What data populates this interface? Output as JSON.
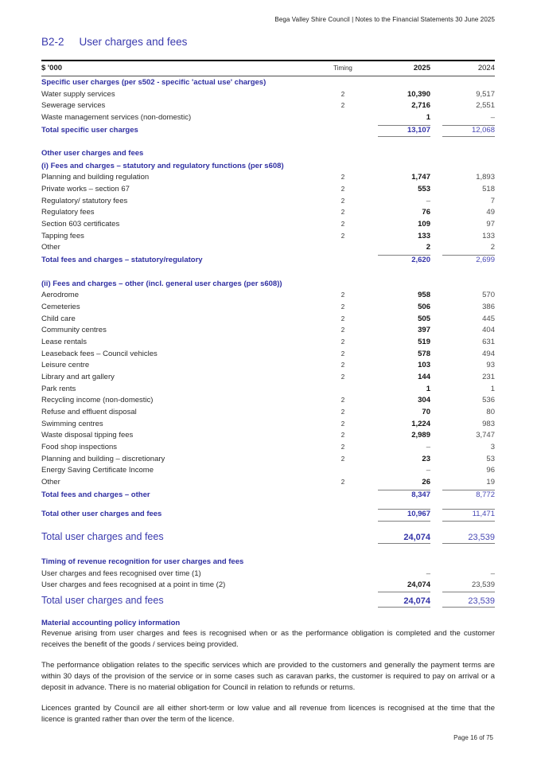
{
  "header": {
    "text": "Bega Valley Shire Council | Notes to the Financial Statements 30 June 2025"
  },
  "title": {
    "code": "B2-2",
    "text": "User charges and fees"
  },
  "table": {
    "headers": {
      "unit": "$ '000",
      "timing": "Timing",
      "y2025": "2025",
      "y2024": "2024"
    },
    "rows": [
      {
        "t": "section",
        "l": "Specific user charges (per s502 - specific 'actual use' charges)"
      },
      {
        "t": "item",
        "l": "Water supply services",
        "tm": "2",
        "a": "10,390",
        "b": "9,517"
      },
      {
        "t": "item",
        "l": "Sewerage services",
        "tm": "2",
        "a": "2,716",
        "b": "2,551"
      },
      {
        "t": "item",
        "l": "Waste management services (non-domestic)",
        "a": "1",
        "b": "–"
      },
      {
        "t": "total",
        "l": "Total specific user charges",
        "a": "13,107",
        "b": "12,068",
        "bt": true,
        "bb": true
      },
      {
        "t": "sp",
        "h": 12
      },
      {
        "t": "section",
        "l": "Other user charges and fees"
      },
      {
        "t": "section",
        "l": "(i) Fees and charges – statutory and regulatory functions (per s608)"
      },
      {
        "t": "item",
        "l": "Planning and building regulation",
        "tm": "2",
        "a": "1,747",
        "b": "1,893"
      },
      {
        "t": "item",
        "l": "Private works – section 67",
        "tm": "2",
        "a": "553",
        "b": "518"
      },
      {
        "t": "item",
        "l": "Regulatory/ statutory fees",
        "tm": "2",
        "a": "–",
        "b": "7"
      },
      {
        "t": "item",
        "l": "Regulatory fees",
        "tm": "2",
        "a": "76",
        "b": "49"
      },
      {
        "t": "item",
        "l": "Section 603 certificates",
        "tm": "2",
        "a": "109",
        "b": "97"
      },
      {
        "t": "item",
        "l": "Tapping fees",
        "tm": "2",
        "a": "133",
        "b": "133"
      },
      {
        "t": "item",
        "l": "Other",
        "a": "2",
        "b": "2"
      },
      {
        "t": "total",
        "l": "Total fees and charges – statutory/regulatory",
        "a": "2,620",
        "b": "2,699",
        "bt": true
      },
      {
        "t": "sp",
        "h": 14
      },
      {
        "t": "section",
        "l": "(ii) Fees and charges – other (incl. general user charges (per s608))"
      },
      {
        "t": "item",
        "l": "Aerodrome",
        "tm": "2",
        "a": "958",
        "b": "570"
      },
      {
        "t": "item",
        "l": "Cemeteries",
        "tm": "2",
        "a": "506",
        "b": "386"
      },
      {
        "t": "item",
        "l": "Child care",
        "tm": "2",
        "a": "505",
        "b": "445"
      },
      {
        "t": "item",
        "l": "Community centres",
        "tm": "2",
        "a": "397",
        "b": "404"
      },
      {
        "t": "item",
        "l": "Lease rentals",
        "tm": "2",
        "a": "519",
        "b": "631"
      },
      {
        "t": "item",
        "l": "Leaseback fees – Council vehicles",
        "tm": "2",
        "a": "578",
        "b": "494"
      },
      {
        "t": "item",
        "l": "Leisure centre",
        "tm": "2",
        "a": "103",
        "b": "93"
      },
      {
        "t": "item",
        "l": "Library and art gallery",
        "tm": "2",
        "a": "144",
        "b": "231"
      },
      {
        "t": "item",
        "l": "Park rents",
        "a": "1",
        "b": "1"
      },
      {
        "t": "item",
        "l": "Recycling income (non-domestic)",
        "tm": "2",
        "a": "304",
        "b": "536"
      },
      {
        "t": "item",
        "l": "Refuse and effluent disposal",
        "tm": "2",
        "a": "70",
        "b": "80"
      },
      {
        "t": "item",
        "l": "Swimming centres",
        "tm": "2",
        "a": "1,224",
        "b": "983"
      },
      {
        "t": "item",
        "l": "Waste disposal tipping fees",
        "tm": "2",
        "a": "2,989",
        "b": "3,747"
      },
      {
        "t": "item",
        "l": "Food shop inspections",
        "tm": "2",
        "a": "–",
        "b": "3"
      },
      {
        "t": "item",
        "l": "Planning and building – discretionary",
        "tm": "2",
        "a": "23",
        "b": "53"
      },
      {
        "t": "item",
        "l": "Energy Saving Certificate Income",
        "a": "–",
        "b": "96"
      },
      {
        "t": "item",
        "l": "Other",
        "tm": "2",
        "a": "26",
        "b": "19"
      },
      {
        "t": "total",
        "l": "Total fees and charges – other",
        "a": "8,347",
        "b": "8,772",
        "bt": true
      },
      {
        "t": "sp",
        "h": 9
      },
      {
        "t": "total",
        "l": "Total other user charges and fees",
        "a": "10,967",
        "b": "11,471",
        "bt": true,
        "bb": true
      },
      {
        "t": "sp",
        "h": 9
      },
      {
        "t": "grand",
        "l": "Total user charges and fees",
        "a": "24,074",
        "b": "23,539",
        "bb": true
      },
      {
        "t": "sp",
        "h": 13
      },
      {
        "t": "section",
        "l": "Timing of revenue recognition for user charges and fees"
      },
      {
        "t": "item",
        "l": "User charges and fees recognised over time (1)",
        "a": "–",
        "b": "–"
      },
      {
        "t": "item",
        "l": "User charges and fees recognised at a point in time (2)",
        "a": "24,074",
        "b": "23,539",
        "bb": true
      },
      {
        "t": "grand",
        "l": "Total user charges and fees",
        "a": "24,074",
        "b": "23,539",
        "bb": true
      }
    ]
  },
  "policy": {
    "heading": "Material accounting policy information",
    "paragraphs": [
      "Revenue arising from user charges and fees is recognised when or as the performance obligation is completed and the customer receives the benefit of the goods / services being provided.",
      "The performance obligation relates to the specific services which are provided to the customers and generally the payment terms are within 30 days of the provision of the service or in some cases such as caravan parks, the customer is required to pay on arrival or a deposit in advance. There is no material obligation for Council in relation to refunds or returns.",
      "Licences granted by Council are all either short-term or low value and all revenue from licences is recognised at the time that the licence is granted rather than over the term of the licence."
    ]
  },
  "footer": {
    "text": "Page 16 of 75"
  },
  "colors": {
    "accent_blue": "#3030a2",
    "value_2025": "#141414",
    "value_2024": "#4d4d4d",
    "rule_gray": "#808080"
  }
}
